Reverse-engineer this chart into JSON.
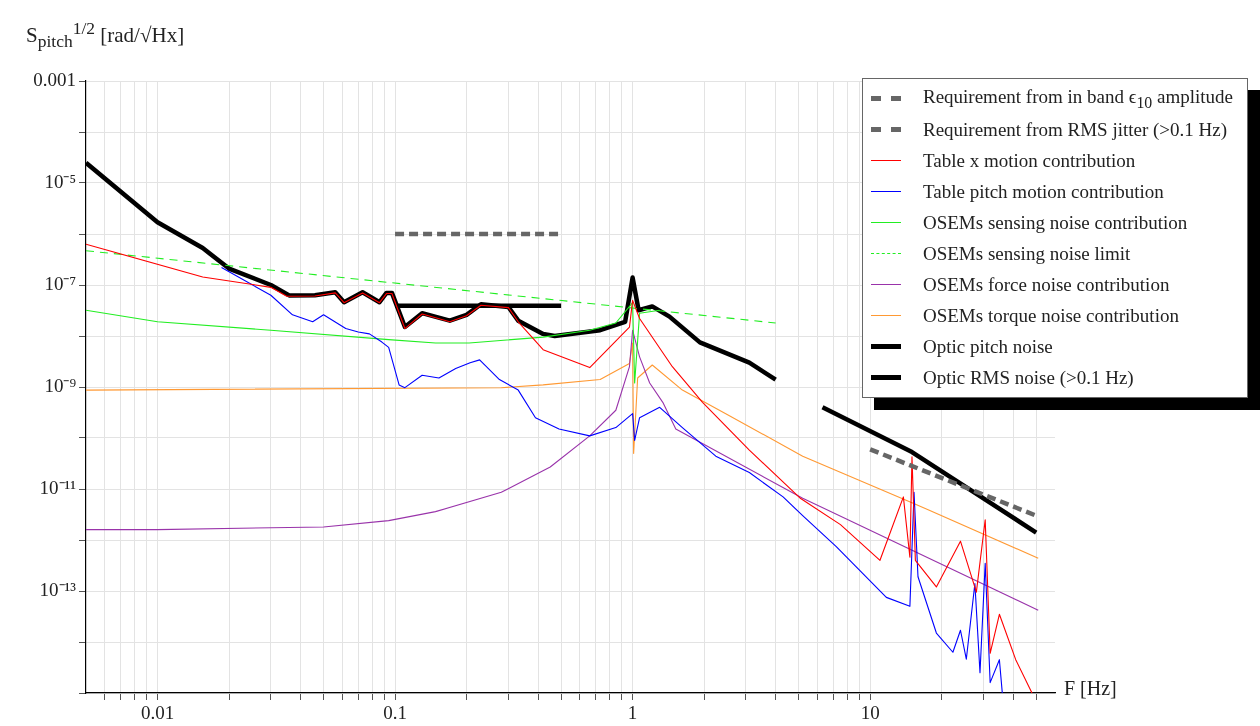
{
  "chart_data": {
    "type": "line",
    "xlabel": "F [Hz]",
    "ylabel": "S$_{pitch}$$^{1/2}$ [rad/√Hx]",
    "log": "xy",
    "grid": true,
    "legend": "top right",
    "marker": "none",
    "xlim": [
      0.005,
      60
    ],
    "ylim": [
      1e-15,
      0.001
    ],
    "xticks": [
      {
        "value": 0.006,
        "label": null
      },
      {
        "value": 0.007,
        "label": null
      },
      {
        "value": 0.008,
        "label": null
      },
      {
        "value": 0.009,
        "label": null
      },
      0.01,
      {
        "value": 0.02,
        "label": null
      },
      {
        "value": 0.03,
        "label": null
      },
      {
        "value": 0.04,
        "label": null
      },
      {
        "value": 0.05,
        "label": null
      },
      {
        "value": 0.06,
        "label": null
      },
      {
        "value": 0.07,
        "label": null
      },
      {
        "value": 0.08,
        "label": null
      },
      {
        "value": 0.09,
        "label": null
      },
      0.1,
      {
        "value": 0.2,
        "label": null
      },
      {
        "value": 0.3,
        "label": null
      },
      {
        "value": 0.4,
        "label": null
      },
      {
        "value": 0.5,
        "label": null
      },
      {
        "value": 0.6,
        "label": null
      },
      {
        "value": 0.7,
        "label": null
      },
      {
        "value": 0.8,
        "label": null
      },
      {
        "value": 0.9,
        "label": null
      },
      1,
      {
        "value": 2,
        "label": null
      },
      {
        "value": 3,
        "label": null
      },
      {
        "value": 4,
        "label": null
      },
      {
        "value": 5,
        "label": null
      },
      {
        "value": 6,
        "label": null
      },
      {
        "value": 7,
        "label": null
      },
      {
        "value": 8,
        "label": null
      },
      {
        "value": 9,
        "label": null
      },
      10,
      {
        "value": 20,
        "label": null
      },
      {
        "value": 30,
        "label": null
      },
      {
        "value": 40,
        "label": null
      },
      {
        "value": 50,
        "label": null
      }
    ],
    "yticks": [
      {
        "value": 1e-15,
        "label": null
      },
      {
        "value": 1e-14,
        "label": null
      },
      {
        "value": 1e-13,
        "label": "10⁻¹³"
      },
      {
        "value": 1e-12,
        "label": null
      },
      {
        "value": 1e-11,
        "label": "10⁻¹¹"
      },
      {
        "value": 1e-10,
        "label": null
      },
      {
        "value": 1e-09,
        "label": "10⁻⁹"
      },
      {
        "value": 1e-08,
        "label": null
      },
      {
        "value": 1e-07,
        "label": "10⁻⁷"
      },
      {
        "value": 1e-06,
        "label": null
      },
      {
        "value": 1e-05,
        "label": "10⁻⁵"
      },
      {
        "value": 0.0001,
        "label": null
      },
      0.001
    ],
    "series": [
      {
        "name": "Requirement from in band ϵ$_{10}$ amplitude",
        "color": "#666666",
        "line_style": "dashed",
        "x": [
          0.1,
          0.5
        ],
        "values": [
          1e-06,
          1e-06
        ]
      },
      {
        "name": "Requirement from RMS jitter (>0.1 Hz)",
        "color": "#666666",
        "line_style": "dashed",
        "x": [
          10,
          50
        ],
        "values": [
          6e-11,
          3e-12
        ]
      },
      {
        "name": "Table x motion contribution",
        "color": "#ff0000",
        "x": [
          0.005,
          0.0155,
          0.03,
          0.035,
          0.046,
          0.056,
          0.061,
          0.073,
          0.086,
          0.092,
          0.097,
          0.11,
          0.13,
          0.17,
          0.2,
          0.23,
          0.3,
          0.33,
          0.42,
          0.66,
          0.97,
          1.0,
          1.07,
          1.47,
          1.97,
          3.1,
          5.1,
          7.5,
          11,
          13.8,
          14.7,
          15,
          15.5,
          19,
          24,
          28,
          30.5,
          32,
          35,
          41,
          48
        ],
        "values": [
          6.3e-07,
          1.44e-07,
          9e-08,
          6e-08,
          6.1e-08,
          7e-08,
          4.5e-08,
          7e-08,
          4.5e-08,
          6.8e-08,
          6.8e-08,
          1.4e-08,
          2.7e-08,
          1.9e-08,
          2.5e-08,
          4e-08,
          3.6e-08,
          1.9e-08,
          5.4e-09,
          2.4e-09,
          1.5e-08,
          5e-08,
          2.2e-08,
          2.5e-09,
          5e-10,
          5.8e-11,
          6.5e-12,
          2e-12,
          4e-13,
          7e-12,
          4.6e-13,
          4.3e-11,
          4e-13,
          1.2e-13,
          9.5e-13,
          9.5e-14,
          2.5e-12,
          6e-15,
          3.5e-14,
          4.5e-15,
          1e-15
        ]
      },
      {
        "name": "Table pitch motion contribution",
        "color": "#0000ff",
        "x": [
          0.0186,
          0.03,
          0.037,
          0.045,
          0.05,
          0.062,
          0.07,
          0.078,
          0.088,
          0.094,
          0.104,
          0.11,
          0.13,
          0.153,
          0.18,
          0.207,
          0.227,
          0.275,
          0.33,
          0.39,
          0.49,
          0.66,
          0.85,
          1.0,
          1.02,
          1.07,
          1.3,
          1.62,
          2.24,
          3.1,
          4.3,
          5.2,
          7.2,
          11.7,
          14.7,
          15.3,
          15.9,
          19,
          22.3,
          24,
          25.4,
          27.6,
          29,
          30.5,
          32,
          35,
          36
        ],
        "values": [
          2.2e-07,
          6.3e-08,
          2.6e-08,
          1.9e-08,
          2.6e-08,
          1.4e-08,
          1.2e-08,
          1.1e-08,
          7.6e-09,
          6e-09,
          1.1e-09,
          9.7e-10,
          1.7e-09,
          1.5e-09,
          2.3e-09,
          3e-09,
          3.4e-09,
          1.4e-09,
          8.7e-10,
          2.5e-10,
          1.5e-10,
          1.1e-10,
          1.6e-10,
          3e-10,
          9e-11,
          2.5e-10,
          4e-10,
          1.6e-10,
          4.4e-11,
          2.1e-11,
          7e-12,
          3e-12,
          7.4e-13,
          7.5e-14,
          5e-14,
          8.6e-12,
          1.9e-13,
          1.5e-14,
          6.3e-15,
          1.7e-14,
          4.6e-15,
          1.4e-13,
          2.5e-15,
          3.5e-13,
          1.6e-15,
          4.5e-15,
          1e-15
        ]
      },
      {
        "name": "OSEMs sensing noise contribution",
        "color": "#22ee22",
        "x": [
          0.005,
          0.01,
          0.03,
          0.094,
          0.148,
          0.205,
          0.42,
          0.66,
          0.85,
          1.0,
          1.02,
          1.07,
          1.3
        ],
        "values": [
          3.2e-08,
          1.9e-08,
          1.3e-08,
          8.5e-09,
          7.3e-09,
          7.3e-09,
          9.5e-09,
          1.3e-08,
          1.8e-08,
          4.5e-08,
          1.2e-09,
          2.8e-08,
          3.2e-08
        ]
      },
      {
        "name": "OSEMs sensing noise limit",
        "color": "#22ee22",
        "line_style": "dashed",
        "x": [
          0.005,
          4
        ],
        "values": [
          4.7e-07,
          1.8e-08
        ]
      },
      {
        "name": "OSEMs force noise contribution",
        "color": "#9933aa",
        "x": [
          0.005,
          0.01,
          0.05,
          0.094,
          0.148,
          0.28,
          0.45,
          0.66,
          0.85,
          0.97,
          1.0,
          1.07,
          1.18,
          1.34,
          1.52,
          5.2,
          51
        ],
        "values": [
          1.6e-12,
          1.6e-12,
          1.8e-12,
          2.4e-12,
          3.6e-12,
          8.6e-12,
          2.7e-11,
          1.1e-10,
          3.5e-10,
          2.5e-09,
          1.3e-08,
          3.9e-09,
          1.2e-09,
          5e-10,
          1.5e-10,
          6.6e-12,
          4.2e-14
        ]
      },
      {
        "name": "OSEMs torque noise contribution",
        "color": "#ff9933",
        "x": [
          0.005,
          0.28,
          0.42,
          0.73,
          0.97,
          1.0,
          1.01,
          1.05,
          1.21,
          1.62,
          2.5,
          5.2,
          15,
          51
        ],
        "values": [
          8.7e-10,
          9.7e-10,
          1.1e-09,
          1.4e-09,
          2.9e-09,
          7.3e-09,
          5e-11,
          1.5e-09,
          2.7e-09,
          8.7e-10,
          2.9e-10,
          4.4e-11,
          5.4e-12,
          4.4e-13
        ]
      },
      {
        "name": "Optic pitch noise",
        "color": "#000000",
        "x": [
          0.005,
          0.01,
          0.0155,
          0.02,
          0.03,
          0.036,
          0.046,
          0.056,
          0.061,
          0.073,
          0.086,
          0.092,
          0.097,
          0.11,
          0.13,
          0.17,
          0.2,
          0.23,
          0.3,
          0.33,
          0.42,
          0.47,
          0.73,
          0.93,
          1.0,
          1.06,
          1.21,
          1.43,
          1.92,
          3.1,
          4,
          5,
          6.3,
          15,
          50
        ],
        "values": [
          2.5e-05,
          1.7e-06,
          5.3e-07,
          2.1e-07,
          1e-07,
          6.2e-08,
          6.3e-08,
          7.2e-08,
          4.6e-08,
          7.2e-08,
          4.6e-08,
          7e-08,
          7e-08,
          1.5e-08,
          2.8e-08,
          2e-08,
          2.6e-08,
          4.2e-08,
          3.7e-08,
          2e-08,
          1.1e-08,
          1e-08,
          1.3e-08,
          1.9e-08,
          1.4e-07,
          3.2e-08,
          3.8e-08,
          2.4e-08,
          7.5e-09,
          3e-09,
          1.4e-09,
          null,
          4e-10,
          5.3e-11,
          1.4e-12
        ]
      },
      {
        "name": "Optic RMS noise (>0.1 Hz)",
        "color": "#000000",
        "x": [
          0.1,
          0.5
        ],
        "values": [
          3.9e-08,
          3.9e-08
        ]
      }
    ]
  }
}
